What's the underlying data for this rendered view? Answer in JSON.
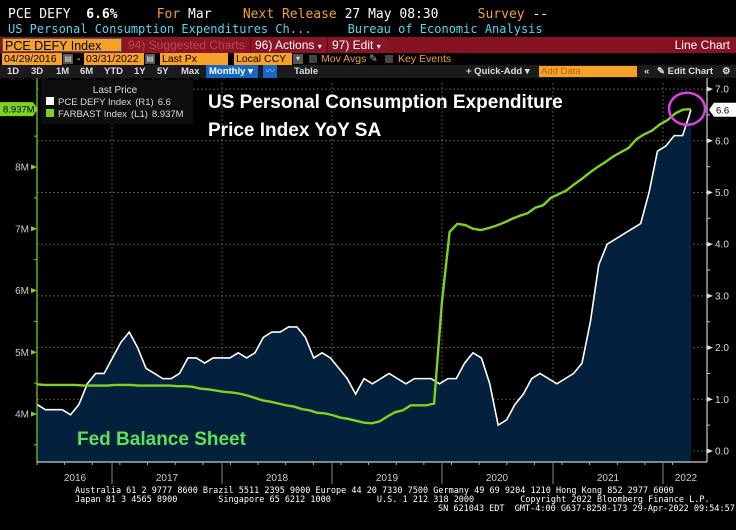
{
  "header": {
    "ticker_short": "PCE DEFY",
    "last_value": "6.6%",
    "for_label": "For",
    "for_period": "Mar",
    "next_release_label": "Next Release",
    "next_release_value": "27 May 08:30",
    "survey_label": "Survey",
    "survey_value": "--",
    "description": "US Personal Consumption Expenditures Ch...",
    "source": "Bureau of Economic Analysis"
  },
  "toolbar": {
    "ticker_input": "PCE DEFY Index",
    "suggested_charts": "94) Suggested Charts",
    "actions": "96) Actions",
    "edit": "97) Edit",
    "chart_type": "Line Chart",
    "start_date": "04/29/2016",
    "end_date": "03/31/2022",
    "date_sep": "-",
    "price_field": "Last Px",
    "currency": "Local CCY",
    "mov_avgs": "Mov Avgs",
    "key_events": "Key Events",
    "ranges": [
      "1D",
      "3D",
      "1M",
      "6M",
      "YTD",
      "1Y",
      "5Y",
      "Max"
    ],
    "period": "Monthly",
    "table": "Table",
    "quick_add": "+ Quick-Add",
    "add_data_placeholder": "Add Data",
    "edit_chart": "Edit Chart"
  },
  "legend": {
    "title": "Last Price",
    "items": [
      {
        "label": "PCE DEFY Index",
        "axis": "(R1)",
        "value": "6.6",
        "color": "#ffffff"
      },
      {
        "label": "FARBAST Index",
        "axis": "(L1)",
        "value": "8.937M",
        "color": "#7ed321"
      }
    ]
  },
  "annotations": {
    "title_line1": "US Personal Consumption Expenditure",
    "title_line2": "Price Index YoY SA",
    "fed_label": "Fed Balance Sheet",
    "circle_color": "#e040e0"
  },
  "chart_data": {
    "type": "line",
    "title": "US Personal Consumption Expenditure Price Index YoY SA",
    "x_start": "2016-04",
    "x_end": "2022-03",
    "frequency": "monthly",
    "x_tick_labels": [
      "2016",
      "2017",
      "2018",
      "2019",
      "2020",
      "2021",
      "2022"
    ],
    "right_axis": {
      "label": "PCE DEFY Index (R1)",
      "ylim": [
        0,
        7
      ],
      "ticks": [
        "0.0",
        "1.0",
        "2.0",
        "3.0",
        "4.0",
        "5.0",
        "6.0",
        "7.0"
      ],
      "last_value_label": "6.6"
    },
    "left_axis": {
      "label": "FARBAST Index (L1)",
      "ylim": [
        3.4,
        9.3
      ],
      "ticks": [
        "4M",
        "5M",
        "6M",
        "7M",
        "8M"
      ],
      "tick_values": [
        4,
        5,
        6,
        7,
        8
      ],
      "last_value_label": "8.937M"
    },
    "grid": true,
    "legend_position": "top-left",
    "series": [
      {
        "name": "PCE DEFY Index",
        "axis": "right",
        "color": "#ffffff",
        "fill": "#03203d",
        "values": [
          0.9,
          0.8,
          0.8,
          0.8,
          0.7,
          0.9,
          1.3,
          1.5,
          1.5,
          1.8,
          2.1,
          2.3,
          2.0,
          1.6,
          1.5,
          1.4,
          1.4,
          1.5,
          1.8,
          1.8,
          1.7,
          1.8,
          1.8,
          1.8,
          1.9,
          1.8,
          1.9,
          2.2,
          2.3,
          2.3,
          2.4,
          2.4,
          2.2,
          1.8,
          1.9,
          1.8,
          1.6,
          1.4,
          1.1,
          1.4,
          1.3,
          1.4,
          1.5,
          1.4,
          1.3,
          1.4,
          1.4,
          1.4,
          1.3,
          1.4,
          1.4,
          1.7,
          1.9,
          1.8,
          1.3,
          0.5,
          0.6,
          0.9,
          1.1,
          1.4,
          1.5,
          1.4,
          1.3,
          1.4,
          1.5,
          1.7,
          2.5,
          3.6,
          4.0,
          4.1,
          4.2,
          4.3,
          4.4,
          5.0,
          5.8,
          5.9,
          6.1,
          6.1,
          6.6
        ],
        "last": 6.6
      },
      {
        "name": "FARBAST Index",
        "axis": "left",
        "color": "#7ed321",
        "values": [
          4.48,
          4.47,
          4.47,
          4.47,
          4.47,
          4.47,
          4.46,
          4.46,
          4.46,
          4.46,
          4.47,
          4.47,
          4.47,
          4.46,
          4.46,
          4.46,
          4.46,
          4.46,
          4.45,
          4.45,
          4.44,
          4.41,
          4.4,
          4.38,
          4.36,
          4.35,
          4.33,
          4.3,
          4.26,
          4.22,
          4.2,
          4.17,
          4.14,
          4.12,
          4.08,
          4.06,
          4.02,
          4.01,
          3.98,
          3.94,
          3.92,
          3.89,
          3.86,
          3.85,
          3.88,
          3.96,
          4.03,
          4.06,
          4.14,
          4.14,
          4.14,
          4.17,
          5.8,
          6.95,
          7.08,
          7.06,
          7.0,
          6.98,
          7.01,
          7.05,
          7.1,
          7.16,
          7.21,
          7.25,
          7.34,
          7.38,
          7.5,
          7.56,
          7.62,
          7.72,
          7.81,
          7.91,
          8.0,
          8.08,
          8.17,
          8.24,
          8.31,
          8.45,
          8.53,
          8.59,
          8.69,
          8.76,
          8.87,
          8.93,
          8.937
        ],
        "last": 8.937
      }
    ]
  },
  "footer": {
    "line1": "Australia 61 2 9777 8600 Brazil 5511 2395 9000 Europe 44 20 7330 7500 Germany 49 69 9204 1210 Hong Kong 852 2977 6000",
    "line2": "Japan 81 3 4565 8900        Singapore 65 6212 1000         U.S. 1 212 318 2000         Copyright 2022 Bloomberg Finance L.P.",
    "line3": "SN 621043 EDT  GMT-4:00 G637-8258-173 29-Apr-2022 09:54:57"
  }
}
